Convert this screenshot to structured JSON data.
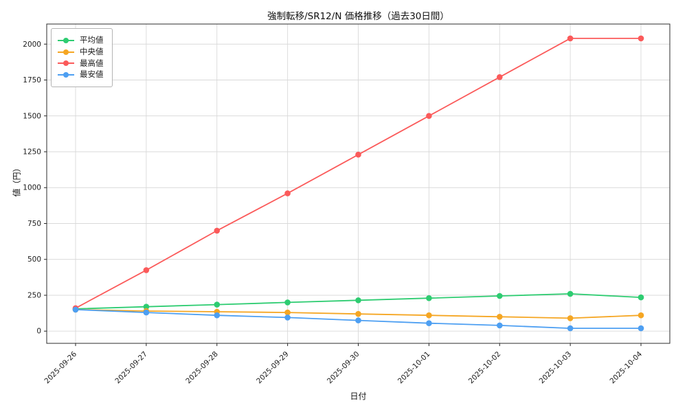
{
  "figure": {
    "background": "#ffffff"
  },
  "chart_data": {
    "type": "line",
    "title": "強制転移/SR12/N 価格推移（過去30日間）",
    "xlabel": "日付",
    "ylabel": "値（円）",
    "categories": [
      "2025-09-26",
      "2025-09-27",
      "2025-09-28",
      "2025-09-29",
      "2025-09-30",
      "2025-10-01",
      "2025-10-02",
      "2025-10-03",
      "2025-10-04"
    ],
    "series": [
      {
        "name": "平均値",
        "color": "#2ecc71",
        "values": [
          155,
          170,
          185,
          200,
          215,
          230,
          245,
          260,
          235
        ]
      },
      {
        "name": "中央値",
        "color": "#f5a623",
        "values": [
          150,
          140,
          135,
          130,
          120,
          110,
          100,
          90,
          110
        ]
      },
      {
        "name": "最高値",
        "color": "#fb5a5a",
        "values": [
          160,
          425,
          700,
          960,
          1230,
          1500,
          1770,
          2040,
          2040
        ]
      },
      {
        "name": "最安値",
        "color": "#4d9ff2",
        "values": [
          150,
          130,
          110,
          95,
          75,
          55,
          40,
          20,
          20
        ]
      }
    ],
    "yticks": [
      0,
      250,
      500,
      750,
      1000,
      1250,
      1500,
      1750,
      2000
    ],
    "ylim": [
      -85,
      2140
    ],
    "grid": true,
    "legend_position": "upper left"
  }
}
